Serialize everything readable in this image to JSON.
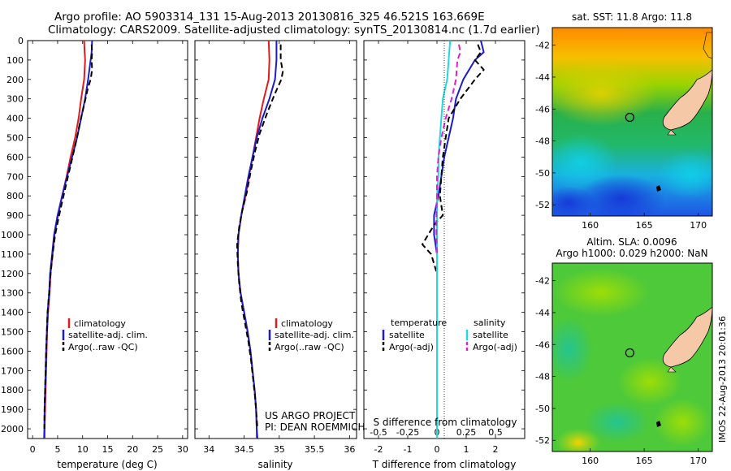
{
  "header": {
    "line1": "Argo profile: AO 5903314_131 15-Aug-2013 20130816_325 46.521S 163.669E",
    "line2": "Climatology: CARS2009. Satellite-adjusted climatology: synTS_20130814.nc (1.7d earlier)"
  },
  "panel_labels": {
    "temperature_xlabel": "temperature (deg C)",
    "salinity_xlabel": "salinity",
    "diff_xlabel_bottom": "T difference from climatology",
    "diff_xlabel_top": "S difference from climatology",
    "project_line1": "US ARGO PROJECT",
    "project_line2": "PI: DEAN ROEMMICH",
    "sst_title": "sat. SST: 11.8  Argo: 11.8",
    "sla_title1": "Altim. SLA: 0.0096",
    "sla_title2": "Argo h1000: 0.029 h2000: NaN",
    "watermark": "IMOS 22-Aug-2013 20:01:36"
  },
  "legend_profiles": [
    "climatology",
    "satellite-adj. clim.",
    "Argo(..raw -QC)"
  ],
  "legend_diff": {
    "temp_head": "temperature",
    "sal_head": "salinity",
    "satellite": "satellite",
    "argo_adj": "Argo(-adj)"
  },
  "colors": {
    "climatology": "#e31a1c",
    "satellite": "#1c1cc8",
    "argo": "#000000",
    "sal_satellite": "#22d8e0",
    "sal_argo": "#e020d0",
    "land": "#f5c9a8"
  },
  "chart_data": [
    {
      "type": "line",
      "name": "temperature",
      "xlabel": "temperature (deg C)",
      "xlim": [
        -1,
        31
      ],
      "ylim": [
        2050,
        0
      ],
      "xticks": [
        0,
        5,
        10,
        15,
        20,
        25,
        30
      ],
      "yticks": [
        0,
        100,
        200,
        300,
        400,
        500,
        600,
        700,
        800,
        900,
        1000,
        1100,
        1200,
        1300,
        1400,
        1500,
        1600,
        1700,
        1800,
        1900,
        2000
      ],
      "series": [
        {
          "name": "climatology",
          "style": "solid",
          "color": "#e31a1c",
          "points": [
            [
              10.3,
              0
            ],
            [
              10.4,
              60
            ],
            [
              10.5,
              100
            ],
            [
              10.3,
              200
            ],
            [
              9.7,
              300
            ],
            [
              9.2,
              400
            ],
            [
              8.5,
              500
            ],
            [
              7.6,
              600
            ],
            [
              6.8,
              700
            ],
            [
              5.9,
              800
            ],
            [
              5.1,
              900
            ],
            [
              4.4,
              1000
            ],
            [
              4.0,
              1100
            ],
            [
              3.6,
              1200
            ],
            [
              3.4,
              1300
            ],
            [
              3.1,
              1400
            ],
            [
              2.9,
              1500
            ],
            [
              2.8,
              1600
            ],
            [
              2.7,
              1700
            ],
            [
              2.6,
              1800
            ],
            [
              2.5,
              1900
            ],
            [
              2.4,
              2000
            ],
            [
              2.4,
              2050
            ]
          ]
        },
        {
          "name": "satellite-adj. clim.",
          "style": "solid",
          "color": "#1c1cc8",
          "points": [
            [
              11.9,
              0
            ],
            [
              11.8,
              60
            ],
            [
              11.6,
              100
            ],
            [
              11.1,
              200
            ],
            [
              10.5,
              300
            ],
            [
              9.7,
              400
            ],
            [
              8.9,
              500
            ],
            [
              7.9,
              600
            ],
            [
              6.9,
              700
            ],
            [
              5.9,
              800
            ],
            [
              5.0,
              900
            ],
            [
              4.3,
              1000
            ],
            [
              3.9,
              1100
            ],
            [
              3.5,
              1200
            ],
            [
              3.3,
              1300
            ],
            [
              3.0,
              1400
            ],
            [
              2.85,
              1500
            ],
            [
              2.7,
              1600
            ],
            [
              2.6,
              1700
            ],
            [
              2.5,
              1800
            ],
            [
              2.4,
              1900
            ],
            [
              2.35,
              2000
            ],
            [
              2.3,
              2050
            ]
          ]
        },
        {
          "name": "Argo(..raw -QC)",
          "style": "dash",
          "color": "#000000",
          "points": [
            [
              11.8,
              20
            ],
            [
              11.9,
              60
            ],
            [
              11.8,
              100
            ],
            [
              11.9,
              150
            ],
            [
              11.6,
              200
            ],
            [
              11.0,
              250
            ],
            [
              10.4,
              320
            ],
            [
              9.5,
              420
            ],
            [
              8.7,
              520
            ],
            [
              7.8,
              620
            ],
            [
              6.9,
              720
            ],
            [
              6.0,
              820
            ],
            [
              5.3,
              900
            ],
            [
              4.5,
              1000
            ],
            [
              4.0,
              1100
            ],
            [
              3.6,
              1200
            ],
            [
              3.3,
              1300
            ],
            [
              3.0,
              1400
            ],
            [
              2.85,
              1500
            ],
            [
              2.7,
              1600
            ],
            [
              2.6,
              1700
            ],
            [
              2.5,
              1800
            ],
            [
              2.4,
              1900
            ],
            [
              2.35,
              2000
            ]
          ]
        }
      ]
    },
    {
      "type": "line",
      "name": "salinity",
      "xlabel": "salinity",
      "xlim": [
        33.8,
        36.1
      ],
      "ylim": [
        2050,
        0
      ],
      "xticks": [
        34,
        34.5,
        35,
        35.5,
        36
      ],
      "series": [
        {
          "name": "climatology",
          "style": "solid",
          "color": "#e31a1c",
          "points": [
            [
              34.85,
              0
            ],
            [
              34.86,
              100
            ],
            [
              34.85,
              200
            ],
            [
              34.78,
              300
            ],
            [
              34.72,
              400
            ],
            [
              34.67,
              500
            ],
            [
              34.62,
              600
            ],
            [
              34.57,
              700
            ],
            [
              34.52,
              800
            ],
            [
              34.46,
              900
            ],
            [
              34.42,
              1000
            ],
            [
              34.41,
              1100
            ],
            [
              34.42,
              1200
            ],
            [
              34.45,
              1300
            ],
            [
              34.5,
              1400
            ],
            [
              34.55,
              1500
            ],
            [
              34.59,
              1600
            ],
            [
              34.62,
              1700
            ],
            [
              34.65,
              1800
            ],
            [
              34.67,
              1900
            ],
            [
              34.68,
              2000
            ],
            [
              34.68,
              2050
            ]
          ]
        },
        {
          "name": "satellite-adj. clim.",
          "style": "solid",
          "color": "#1c1cc8",
          "points": [
            [
              34.96,
              0
            ],
            [
              34.96,
              100
            ],
            [
              34.94,
              200
            ],
            [
              34.86,
              300
            ],
            [
              34.76,
              400
            ],
            [
              34.68,
              500
            ],
            [
              34.62,
              600
            ],
            [
              34.56,
              700
            ],
            [
              34.51,
              800
            ],
            [
              34.46,
              900
            ],
            [
              34.42,
              1000
            ],
            [
              34.41,
              1100
            ],
            [
              34.42,
              1200
            ],
            [
              34.45,
              1300
            ],
            [
              34.5,
              1400
            ],
            [
              34.55,
              1500
            ],
            [
              34.59,
              1600
            ],
            [
              34.62,
              1700
            ],
            [
              34.65,
              1800
            ],
            [
              34.67,
              1900
            ],
            [
              34.68,
              2000
            ],
            [
              34.69,
              2050
            ]
          ]
        },
        {
          "name": "Argo(..raw -QC)",
          "style": "dash",
          "color": "#000000",
          "points": [
            [
              35.02,
              20
            ],
            [
              35.02,
              100
            ],
            [
              35.05,
              160
            ],
            [
              35.03,
              200
            ],
            [
              34.93,
              280
            ],
            [
              34.82,
              380
            ],
            [
              34.72,
              480
            ],
            [
              34.65,
              580
            ],
            [
              34.59,
              680
            ],
            [
              34.54,
              780
            ],
            [
              34.47,
              880
            ],
            [
              34.43,
              960
            ],
            [
              34.4,
              1050
            ],
            [
              34.41,
              1150
            ],
            [
              34.43,
              1250
            ],
            [
              34.46,
              1350
            ],
            [
              34.51,
              1450
            ],
            [
              34.56,
              1550
            ],
            [
              34.6,
              1650
            ],
            [
              34.63,
              1750
            ],
            [
              34.66,
              1850
            ],
            [
              34.68,
              1950
            ],
            [
              34.69,
              2000
            ]
          ]
        }
      ]
    },
    {
      "type": "line",
      "name": "difference",
      "xlabel": "T difference from climatology",
      "x2label": "S difference from climatology",
      "xlim": [
        -2.5,
        3
      ],
      "ylim": [
        2050,
        0
      ],
      "xticks": [
        -2,
        -1,
        0,
        1,
        2
      ],
      "x2ticks": [
        "-0.5",
        "-0.25",
        "0",
        "0.25",
        "0.5"
      ],
      "series": [
        {
          "name": "temperature satellite",
          "style": "solid",
          "color": "#1c1cc8",
          "points": [
            [
              1.5,
              0
            ],
            [
              1.6,
              60
            ],
            [
              1.3,
              100
            ],
            [
              0.9,
              200
            ],
            [
              0.65,
              300
            ],
            [
              0.55,
              400
            ],
            [
              0.4,
              500
            ],
            [
              0.25,
              600
            ],
            [
              0.15,
              700
            ],
            [
              0.05,
              800
            ],
            [
              -0.1,
              900
            ],
            [
              -0.1,
              1000
            ],
            [
              0.0,
              1100
            ],
            [
              0,
              1200
            ],
            [
              0,
              1300
            ],
            [
              0,
              1400
            ],
            [
              0,
              1500
            ],
            [
              0,
              1600
            ],
            [
              0,
              1700
            ],
            [
              0,
              1800
            ],
            [
              0,
              1900
            ],
            [
              0,
              2050
            ]
          ]
        },
        {
          "name": "temperature Argo(-adj)",
          "style": "dash",
          "color": "#000000",
          "points": [
            [
              1.4,
              20
            ],
            [
              1.5,
              60
            ],
            [
              1.3,
              100
            ],
            [
              1.6,
              150
            ],
            [
              1.3,
              200
            ],
            [
              0.8,
              300
            ],
            [
              0.4,
              400
            ],
            [
              0.3,
              500
            ],
            [
              0.2,
              600
            ],
            [
              0.15,
              700
            ],
            [
              0.1,
              800
            ],
            [
              0.2,
              900
            ],
            [
              -0.1,
              950
            ],
            [
              -0.3,
              1000
            ],
            [
              -0.5,
              1050
            ],
            [
              -0.2,
              1100
            ],
            [
              0,
              1200
            ],
            [
              0,
              1300
            ],
            [
              0,
              1400
            ],
            [
              0,
              1500
            ],
            [
              0,
              1600
            ],
            [
              0,
              1700
            ],
            [
              0,
              1800
            ],
            [
              0,
              1900
            ],
            [
              0,
              2000
            ]
          ]
        },
        {
          "name": "salinity satellite",
          "style": "solid",
          "color": "#22d8e0",
          "points": [
            [
              0.45,
              0
            ],
            [
              0.4,
              100
            ],
            [
              0.35,
              200
            ],
            [
              0.2,
              300
            ],
            [
              0.15,
              400
            ],
            [
              0.1,
              500
            ],
            [
              0.05,
              600
            ],
            [
              0.05,
              700
            ],
            [
              0,
              800
            ],
            [
              0,
              900
            ],
            [
              0,
              1000
            ],
            [
              0,
              1100
            ],
            [
              0,
              1200
            ],
            [
              0,
              1300
            ],
            [
              0,
              1400
            ],
            [
              0,
              1500
            ],
            [
              0,
              1600
            ],
            [
              0,
              1700
            ],
            [
              0,
              1800
            ],
            [
              0,
              1900
            ],
            [
              0,
              2050
            ]
          ]
        },
        {
          "name": "salinity Argo(-adj)",
          "style": "dash",
          "color": "#e020d0",
          "points": [
            [
              0.75,
              20
            ],
            [
              0.8,
              60
            ],
            [
              0.7,
              100
            ],
            [
              0.65,
              200
            ],
            [
              0.5,
              300
            ],
            [
              0.3,
              400
            ],
            [
              0.15,
              500
            ],
            [
              0.05,
              600
            ],
            [
              0,
              700
            ],
            [
              0,
              800
            ],
            [
              -0.02,
              900
            ],
            [
              -0.02,
              1000
            ],
            [
              0,
              1100
            ]
          ]
        }
      ]
    },
    {
      "type": "heatmap",
      "name": "sst_map",
      "title": "sat. SST: 11.8  Argo: 11.8",
      "xlim": [
        156.5,
        171.3
      ],
      "ylim": [
        -52.7,
        -40.9
      ],
      "xticks": [
        160,
        165,
        170
      ],
      "yticks": [
        -42,
        -44,
        -46,
        -48,
        -50,
        -52
      ],
      "argo_position": [
        163.669,
        -46.521
      ]
    },
    {
      "type": "heatmap",
      "name": "sla_map",
      "title": "Altim. SLA: 0.0096",
      "xlim": [
        156.5,
        171.3
      ],
      "ylim": [
        -52.7,
        -40.9
      ],
      "xticks": [
        160,
        165,
        170
      ],
      "yticks": [
        -42,
        -44,
        -46,
        -48,
        -50,
        -52
      ],
      "argo_position": [
        163.669,
        -46.521
      ]
    }
  ]
}
